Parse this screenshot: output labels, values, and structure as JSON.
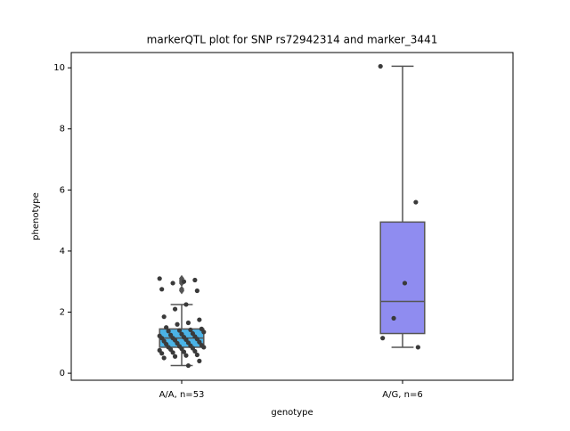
{
  "chart_data": {
    "type": "box",
    "title": "markerQTL plot for SNP rs72942314 and marker_3441",
    "xlabel": "genotype",
    "ylabel": "phenotype",
    "categories": [
      "A/A, n=53",
      "A/G, n=6"
    ],
    "ylim": [
      -0.23,
      10.5
    ],
    "yticks": [
      0,
      2,
      4,
      6,
      8,
      10
    ],
    "boxes": [
      {
        "color": "#4bb3e6",
        "whislo": 0.25,
        "q1": 0.85,
        "med": 1.15,
        "q3": 1.45,
        "whishi": 2.25,
        "fliers": [
          3.1,
          3.05,
          3.0,
          2.95,
          2.75,
          2.7
        ]
      },
      {
        "color": "#8f8cf0",
        "whislo": 0.85,
        "q1": 1.3,
        "med": 2.35,
        "q3": 4.95,
        "whishi": 10.05,
        "fliers": []
      }
    ],
    "points": [
      [
        3.1,
        3.05,
        3.0,
        2.95,
        2.75,
        2.7,
        2.25,
        2.1,
        1.85,
        1.75,
        1.65,
        1.6,
        1.5,
        1.45,
        1.42,
        1.4,
        1.38,
        1.35,
        1.3,
        1.28,
        1.25,
        1.22,
        1.2,
        1.18,
        1.15,
        1.15,
        1.12,
        1.1,
        1.08,
        1.05,
        1.02,
        1.0,
        0.98,
        0.95,
        0.92,
        0.9,
        0.88,
        0.85,
        0.85,
        0.82,
        0.8,
        0.78,
        0.75,
        0.72,
        0.7,
        0.68,
        0.65,
        0.6,
        0.58,
        0.55,
        0.5,
        0.4,
        0.25
      ],
      [
        10.05,
        5.6,
        2.95,
        1.8,
        1.15,
        0.85
      ]
    ],
    "point_color": "#3a3a3a"
  }
}
